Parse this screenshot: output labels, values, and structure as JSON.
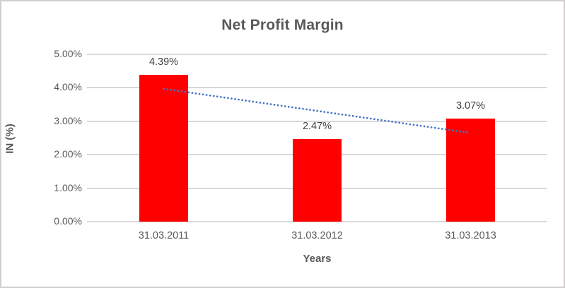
{
  "chart_data": {
    "type": "bar",
    "title": "Net Profit Margin",
    "xlabel": "Years",
    "ylabel": "IN (%)",
    "categories": [
      "31.03.2011",
      "31.03.2012",
      "31.03.2013"
    ],
    "values": [
      4.39,
      2.47,
      3.07
    ],
    "data_labels": [
      "4.39%",
      "2.47%",
      "3.07%"
    ],
    "ylim": [
      0,
      5
    ],
    "ytick_labels": [
      "0.00%",
      "1.00%",
      "2.00%",
      "3.00%",
      "4.00%",
      "5.00%"
    ],
    "grid": true,
    "legend": "none",
    "bar_color": "#ff0000",
    "trendline": {
      "type": "linear",
      "style": "dotted",
      "color": "#4472c4",
      "start_value": 3.97,
      "end_value": 2.65
    },
    "colors": {
      "title_text": "#595959",
      "axis_text": "#595959",
      "data_label_text": "#404040",
      "gridline": "#d9d9d9",
      "frame_border": "#d0cece"
    }
  }
}
